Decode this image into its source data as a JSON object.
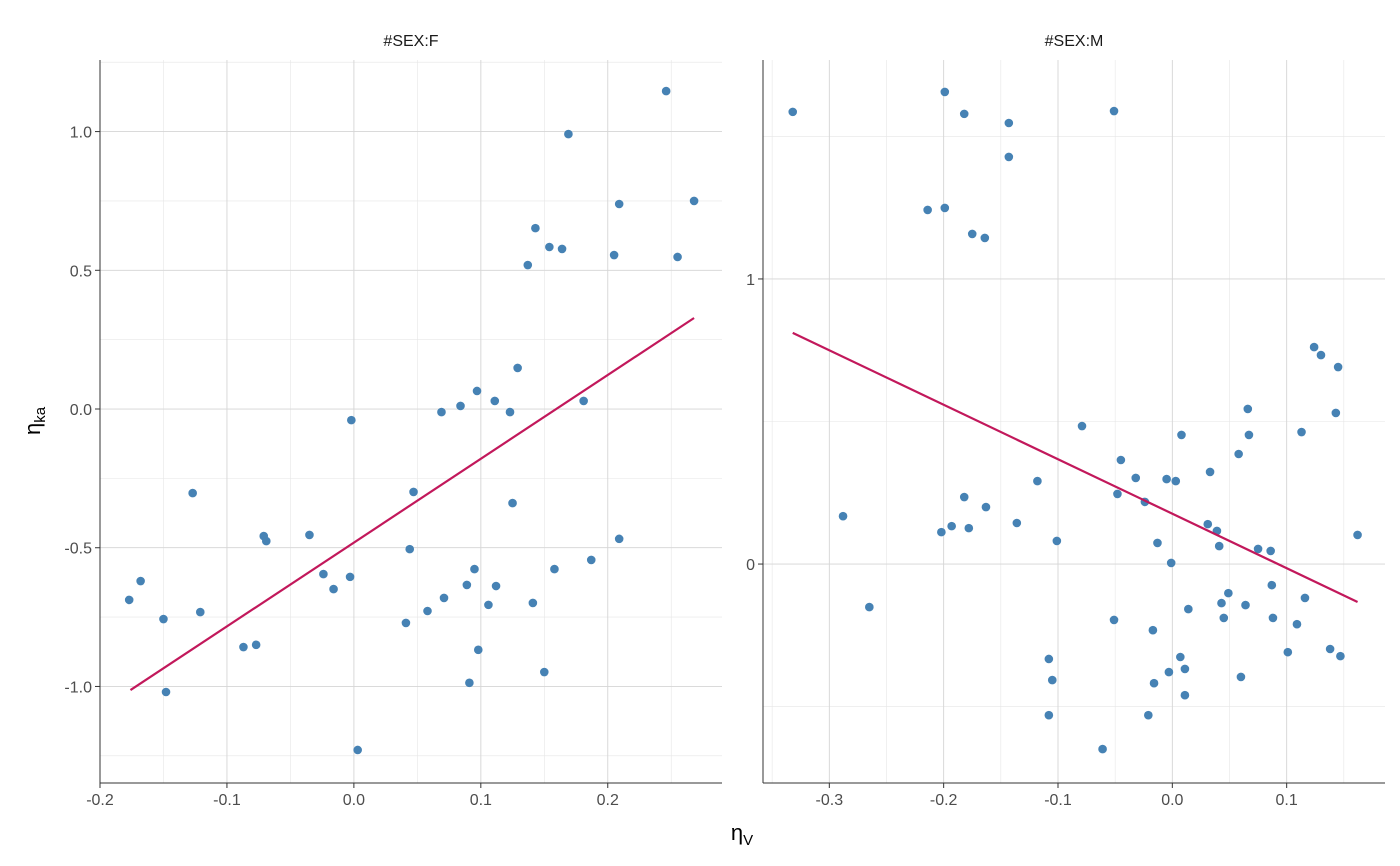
{
  "chart_data": {
    "type": "scatter",
    "xlabel": "ηV",
    "ylabel": "ηka",
    "point_color": "#4682B4",
    "line_color": "#C2185B",
    "grid": true,
    "panels": [
      {
        "title": "#SEX:F",
        "xlim": [
          -0.2,
          0.29
        ],
        "ylim": [
          -1.348,
          1.258
        ],
        "xticks": [
          -0.2,
          -0.1,
          0.0,
          0.1,
          0.2
        ],
        "xtick_labels": [
          "-0.2",
          "-0.1",
          "0.0",
          "0.1",
          "0.2"
        ],
        "yticks": [
          -1.0,
          -0.5,
          0.0,
          0.5,
          1.0
        ],
        "ytick_labels": [
          "-1.0",
          "-0.5",
          "0.0",
          "0.5",
          "1.0"
        ],
        "regression_line": [
          [
            -0.176,
            -1.013
          ],
          [
            0.268,
            0.328
          ]
        ],
        "points": [
          [
            -0.177,
            -0.688
          ],
          [
            -0.168,
            -0.62
          ],
          [
            -0.15,
            -0.757
          ],
          [
            -0.148,
            -1.02
          ],
          [
            -0.127,
            -0.303
          ],
          [
            -0.121,
            -0.732
          ],
          [
            -0.087,
            -0.858
          ],
          [
            -0.077,
            -0.85
          ],
          [
            -0.071,
            -0.458
          ],
          [
            -0.069,
            -0.476
          ],
          [
            -0.035,
            -0.454
          ],
          [
            -0.024,
            -0.595
          ],
          [
            -0.016,
            -0.649
          ],
          [
            -0.003,
            -0.605
          ],
          [
            -0.002,
            -0.04
          ],
          [
            0.003,
            -1.229
          ],
          [
            0.041,
            -0.771
          ],
          [
            0.044,
            -0.505
          ],
          [
            0.047,
            -0.299
          ],
          [
            0.058,
            -0.728
          ],
          [
            0.069,
            -0.011
          ],
          [
            0.071,
            -0.681
          ],
          [
            0.084,
            0.011
          ],
          [
            0.089,
            -0.634
          ],
          [
            0.091,
            -0.987
          ],
          [
            0.095,
            -0.577
          ],
          [
            0.097,
            0.065
          ],
          [
            0.098,
            -0.868
          ],
          [
            0.106,
            -0.706
          ],
          [
            0.111,
            0.029
          ],
          [
            0.112,
            -0.638
          ],
          [
            0.123,
            -0.011
          ],
          [
            0.125,
            -0.339
          ],
          [
            0.129,
            0.148
          ],
          [
            0.137,
            0.519
          ],
          [
            0.141,
            -0.699
          ],
          [
            0.143,
            0.652
          ],
          [
            0.15,
            -0.948
          ],
          [
            0.154,
            0.584
          ],
          [
            0.158,
            -0.577
          ],
          [
            0.164,
            0.577
          ],
          [
            0.169,
            0.991
          ],
          [
            0.181,
            0.029
          ],
          [
            0.187,
            -0.544
          ],
          [
            0.205,
            0.555
          ],
          [
            0.209,
            -0.468
          ],
          [
            0.209,
            0.739
          ],
          [
            0.246,
            1.146
          ],
          [
            0.255,
            0.548
          ],
          [
            0.268,
            0.75
          ]
        ]
      },
      {
        "title": "#SEX:M",
        "xlim": [
          -0.358,
          0.186
        ],
        "ylim": [
          -0.768,
          1.768
        ],
        "xticks": [
          -0.3,
          -0.2,
          -0.1,
          0.0,
          0.1
        ],
        "xtick_labels": [
          "-0.3",
          "-0.2",
          "-0.1",
          "0.0",
          "0.1"
        ],
        "yticks": [
          0,
          1
        ],
        "ytick_labels": [
          "0",
          "1"
        ],
        "regression_line": [
          [
            -0.332,
            0.811
          ],
          [
            0.162,
            -0.133
          ]
        ],
        "points": [
          [
            -0.332,
            1.586
          ],
          [
            -0.288,
            0.168
          ],
          [
            -0.265,
            -0.151
          ],
          [
            -0.202,
            0.112
          ],
          [
            -0.199,
            1.656
          ],
          [
            -0.199,
            1.249
          ],
          [
            -0.193,
            0.133
          ],
          [
            -0.182,
            1.579
          ],
          [
            -0.182,
            0.235
          ],
          [
            -0.178,
            0.126
          ],
          [
            -0.175,
            1.158
          ],
          [
            -0.164,
            1.144
          ],
          [
            -0.214,
            1.242
          ],
          [
            -0.163,
            0.2
          ],
          [
            -0.143,
            1.547
          ],
          [
            -0.143,
            1.428
          ],
          [
            -0.136,
            0.144
          ],
          [
            -0.118,
            0.291
          ],
          [
            -0.108,
            -0.333
          ],
          [
            -0.105,
            -0.407
          ],
          [
            -0.108,
            -0.53
          ],
          [
            -0.101,
            0.081
          ],
          [
            -0.079,
            0.484
          ],
          [
            -0.061,
            -0.649
          ],
          [
            -0.051,
            1.589
          ],
          [
            -0.051,
            -0.196
          ],
          [
            -0.048,
            0.246
          ],
          [
            -0.045,
            0.365
          ],
          [
            -0.032,
            0.302
          ],
          [
            -0.024,
            0.218
          ],
          [
            -0.021,
            -0.53
          ],
          [
            -0.017,
            -0.232
          ],
          [
            -0.016,
            -0.418
          ],
          [
            -0.013,
            0.074
          ],
          [
            -0.005,
            0.298
          ],
          [
            -0.003,
            -0.379
          ],
          [
            -0.001,
            0.004
          ],
          [
            0.003,
            0.291
          ],
          [
            0.007,
            -0.326
          ],
          [
            0.008,
            0.453
          ],
          [
            0.011,
            -0.368
          ],
          [
            0.011,
            -0.46
          ],
          [
            0.014,
            -0.158
          ],
          [
            0.031,
            0.14
          ],
          [
            0.033,
            0.323
          ],
          [
            0.039,
            0.116
          ],
          [
            0.041,
            0.063
          ],
          [
            0.043,
            -0.137
          ],
          [
            0.045,
            -0.189
          ],
          [
            0.049,
            -0.102
          ],
          [
            0.058,
            0.386
          ],
          [
            0.06,
            -0.396
          ],
          [
            0.064,
            -0.144
          ],
          [
            0.066,
            0.544
          ],
          [
            0.067,
            0.453
          ],
          [
            0.075,
            0.053
          ],
          [
            0.086,
            0.046
          ],
          [
            0.087,
            -0.074
          ],
          [
            0.088,
            -0.189
          ],
          [
            0.101,
            -0.309
          ],
          [
            0.109,
            -0.211
          ],
          [
            0.113,
            0.463
          ],
          [
            0.116,
            -0.119
          ],
          [
            0.124,
            0.761
          ],
          [
            0.13,
            0.733
          ],
          [
            0.138,
            -0.298
          ],
          [
            0.143,
            0.53
          ],
          [
            0.145,
            0.691
          ],
          [
            0.147,
            -0.323
          ],
          [
            0.162,
            0.102
          ]
        ]
      }
    ]
  }
}
